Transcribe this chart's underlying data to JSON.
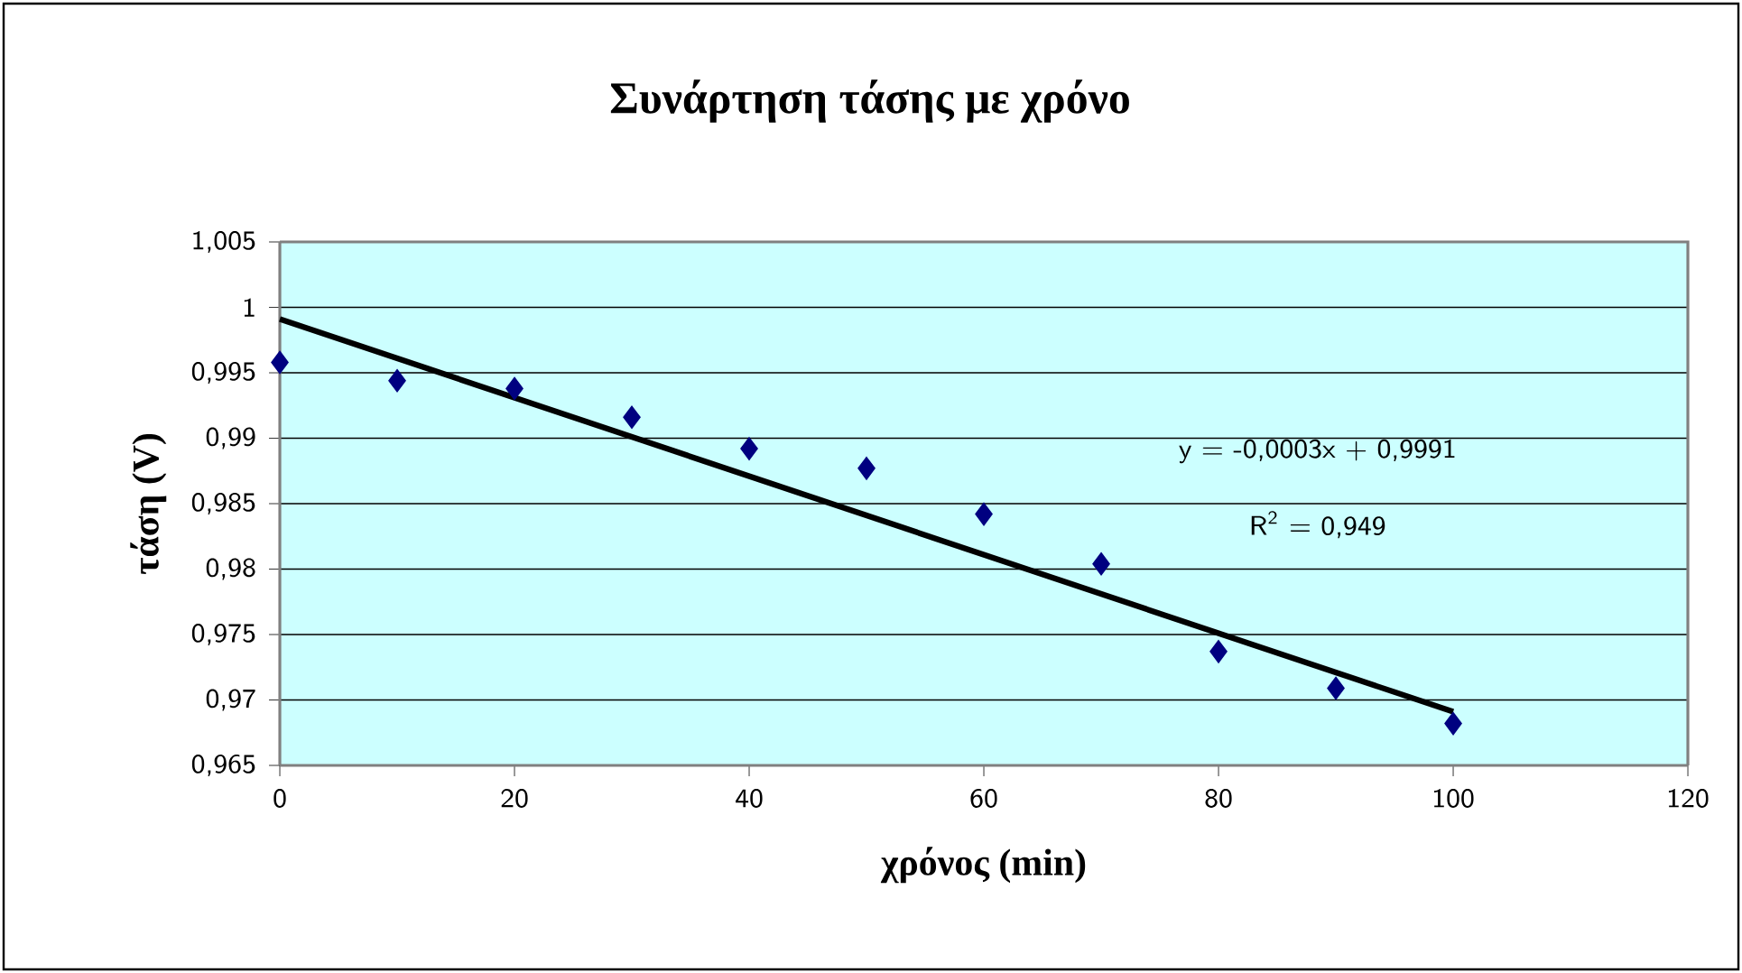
{
  "chart_data": {
    "type": "scatter",
    "title": "Συνάρτηση τάσης με χρόνο",
    "xlabel": "χρόνος (min)",
    "ylabel": "τάση (V)",
    "xlim": [
      0,
      120
    ],
    "xticks": [
      0,
      20,
      40,
      60,
      80,
      100,
      120
    ],
    "ylim": [
      0.965,
      1.005
    ],
    "yticks": [
      {
        "value": 0.965,
        "label": "0,965"
      },
      {
        "value": 0.97,
        "label": "0,97"
      },
      {
        "value": 0.975,
        "label": "0,975"
      },
      {
        "value": 0.98,
        "label": "0,98"
      },
      {
        "value": 0.985,
        "label": "0,985"
      },
      {
        "value": 0.99,
        "label": "0,99"
      },
      {
        "value": 0.995,
        "label": "0,995"
      },
      {
        "value": 1,
        "label": "1"
      },
      {
        "value": 1.005,
        "label": "1,005"
      }
    ],
    "grid": "y",
    "series": [
      {
        "color": "#000080",
        "marker": "diamond",
        "x": [
          0,
          10,
          20,
          30,
          40,
          50,
          60,
          70,
          80,
          90,
          100
        ],
        "values": [
          0.9958,
          0.9944,
          0.9938,
          0.9916,
          0.9892,
          0.9877,
          0.9842,
          0.9804,
          0.9737,
          0.9709,
          0.9682
        ]
      },
      {
        "type": "line",
        "color": "#000000",
        "marker": "none",
        "line_style": "solid",
        "x": [
          0,
          100
        ],
        "values": [
          0.9991,
          0.9691
        ]
      }
    ],
    "annotations": [
      "y = -0,0003x + 0,9991",
      "R$^{2}$ = 0,949"
    ]
  }
}
